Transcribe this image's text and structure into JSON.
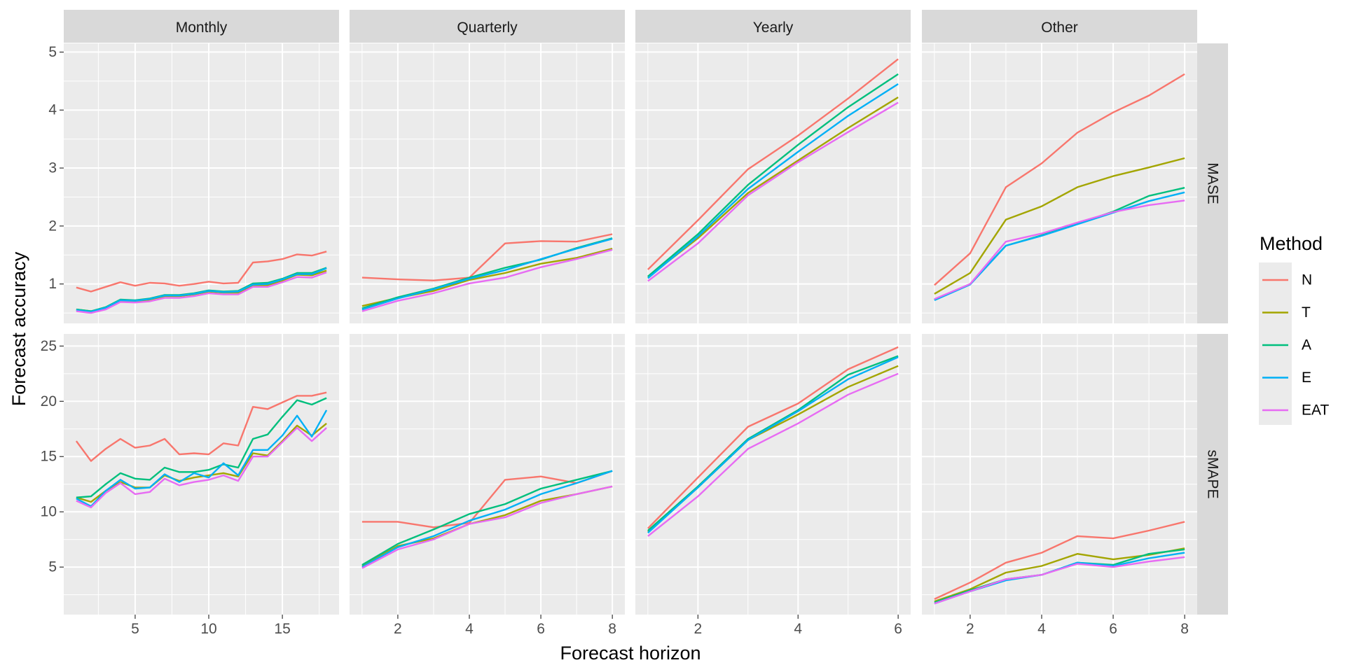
{
  "chart_data": {
    "type": "line",
    "xlabel": "Forecast horizon",
    "ylabel": "Forecast accuracy",
    "legend": {
      "title": "Method",
      "position": "right"
    },
    "grid": true,
    "series_colors": {
      "N": "#F8766D",
      "T": "#A3A500",
      "A": "#00BF7D",
      "E": "#00B0F6",
      "EAT": "#E76BF3"
    },
    "columns": [
      "Monthly",
      "Quarterly",
      "Yearly",
      "Other"
    ],
    "rows": [
      "MASE",
      "sMAPE"
    ],
    "row_axes": {
      "MASE": {
        "ylim": [
          0.32,
          5.15
        ],
        "yticks": [
          1,
          2,
          3,
          4,
          5
        ]
      },
      "sMAPE": {
        "ylim": [
          0.7,
          26.1
        ],
        "yticks": [
          5,
          10,
          15,
          20,
          25
        ]
      }
    },
    "col_axes": {
      "Monthly": {
        "xlim": [
          0.15,
          18.85
        ],
        "xticks": [
          5,
          10,
          15
        ]
      },
      "Quarterly": {
        "xlim": [
          0.65,
          8.35
        ],
        "xticks": [
          2,
          4,
          6,
          8
        ]
      },
      "Yearly": {
        "xlim": [
          0.75,
          6.25
        ],
        "xticks": [
          2,
          4,
          6
        ]
      },
      "Other": {
        "xlim": [
          0.65,
          8.35
        ],
        "xticks": [
          2,
          4,
          6,
          8
        ]
      }
    },
    "panels": [
      {
        "row": "MASE",
        "col": "Monthly",
        "x": [
          1,
          2,
          3,
          4,
          5,
          6,
          7,
          8,
          9,
          10,
          11,
          12,
          13,
          14,
          15,
          16,
          17,
          18
        ],
        "series": [
          {
            "name": "N",
            "values": [
              0.94,
              0.87,
              0.95,
              1.03,
              0.97,
              1.02,
              1.01,
              0.97,
              1.0,
              1.04,
              1.01,
              1.02,
              1.37,
              1.39,
              1.43,
              1.51,
              1.49,
              1.56
            ]
          },
          {
            "name": "T",
            "values": [
              0.56,
              0.53,
              0.58,
              0.71,
              0.7,
              0.73,
              0.79,
              0.79,
              0.82,
              0.87,
              0.85,
              0.85,
              0.98,
              0.98,
              1.06,
              1.16,
              1.15,
              1.23
            ]
          },
          {
            "name": "A",
            "values": [
              0.56,
              0.53,
              0.6,
              0.73,
              0.72,
              0.75,
              0.81,
              0.81,
              0.84,
              0.89,
              0.87,
              0.88,
              1.01,
              1.02,
              1.09,
              1.19,
              1.19,
              1.28
            ]
          },
          {
            "name": "E",
            "values": [
              0.55,
              0.52,
              0.59,
              0.72,
              0.71,
              0.74,
              0.8,
              0.8,
              0.83,
              0.88,
              0.86,
              0.87,
              0.99,
              1.0,
              1.08,
              1.17,
              1.17,
              1.27
            ]
          },
          {
            "name": "EAT",
            "values": [
              0.53,
              0.5,
              0.56,
              0.69,
              0.68,
              0.7,
              0.76,
              0.76,
              0.79,
              0.84,
              0.82,
              0.82,
              0.95,
              0.95,
              1.03,
              1.12,
              1.11,
              1.2
            ]
          }
        ]
      },
      {
        "row": "MASE",
        "col": "Quarterly",
        "x": [
          1,
          2,
          3,
          4,
          5,
          6,
          7,
          8
        ],
        "series": [
          {
            "name": "N",
            "values": [
              1.11,
              1.08,
              1.06,
              1.11,
              1.7,
              1.74,
              1.73,
              1.86
            ]
          },
          {
            "name": "T",
            "values": [
              0.62,
              0.76,
              0.88,
              1.07,
              1.19,
              1.35,
              1.45,
              1.61
            ]
          },
          {
            "name": "A",
            "values": [
              0.58,
              0.77,
              0.92,
              1.11,
              1.28,
              1.42,
              1.62,
              1.79
            ]
          },
          {
            "name": "E",
            "values": [
              0.56,
              0.75,
              0.91,
              1.09,
              1.24,
              1.43,
              1.61,
              1.78
            ]
          },
          {
            "name": "EAT",
            "values": [
              0.53,
              0.71,
              0.84,
              1.01,
              1.11,
              1.29,
              1.43,
              1.59
            ]
          }
        ]
      },
      {
        "row": "MASE",
        "col": "Yearly",
        "x": [
          1,
          2,
          3,
          4,
          5,
          6
        ],
        "series": [
          {
            "name": "N",
            "values": [
              1.25,
              2.1,
              2.98,
              3.56,
              4.2,
              4.88
            ]
          },
          {
            "name": "T",
            "values": [
              1.12,
              1.79,
              2.57,
              3.13,
              3.69,
              4.22
            ]
          },
          {
            "name": "A",
            "values": [
              1.13,
              1.86,
              2.71,
              3.4,
              4.05,
              4.62
            ]
          },
          {
            "name": "E",
            "values": [
              1.1,
              1.82,
              2.64,
              3.28,
              3.9,
              4.45
            ]
          },
          {
            "name": "EAT",
            "values": [
              1.05,
              1.7,
              2.53,
              3.1,
              3.62,
              4.13
            ]
          }
        ]
      },
      {
        "row": "MASE",
        "col": "Other",
        "x": [
          1,
          2,
          3,
          4,
          5,
          6,
          7,
          8
        ],
        "series": [
          {
            "name": "N",
            "values": [
              0.98,
              1.53,
              2.67,
              3.08,
              3.61,
              3.96,
              4.25,
              4.62
            ]
          },
          {
            "name": "T",
            "values": [
              0.83,
              1.19,
              2.11,
              2.34,
              2.67,
              2.86,
              3.01,
              3.17
            ]
          },
          {
            "name": "A",
            "values": [
              0.73,
              1.0,
              1.66,
              1.84,
              2.04,
              2.25,
              2.52,
              2.66
            ]
          },
          {
            "name": "E",
            "values": [
              0.72,
              0.99,
              1.66,
              1.83,
              2.03,
              2.23,
              2.43,
              2.58
            ]
          },
          {
            "name": "EAT",
            "values": [
              0.74,
              1.0,
              1.73,
              1.87,
              2.06,
              2.24,
              2.36,
              2.44
            ]
          }
        ]
      },
      {
        "row": "sMAPE",
        "col": "Monthly",
        "x": [
          1,
          2,
          3,
          4,
          5,
          6,
          7,
          8,
          9,
          10,
          11,
          12,
          13,
          14,
          15,
          16,
          17,
          18
        ],
        "series": [
          {
            "name": "N",
            "values": [
              16.4,
              14.6,
              15.7,
              16.6,
              15.8,
              16.0,
              16.6,
              15.2,
              15.3,
              15.2,
              16.2,
              16.0,
              19.5,
              19.3,
              19.9,
              20.5,
              20.5,
              20.8
            ]
          },
          {
            "name": "T",
            "values": [
              11.3,
              10.9,
              11.9,
              12.7,
              12.2,
              12.2,
              13.3,
              12.8,
              13.1,
              13.3,
              13.5,
              13.2,
              15.3,
              15.1,
              16.4,
              17.8,
              16.9,
              18.0
            ]
          },
          {
            "name": "A",
            "values": [
              11.3,
              11.4,
              12.5,
              13.5,
              13.0,
              12.9,
              14.0,
              13.6,
              13.6,
              13.8,
              14.3,
              14.0,
              16.6,
              17.0,
              18.6,
              20.1,
              19.7,
              20.3
            ]
          },
          {
            "name": "E",
            "values": [
              11.2,
              10.5,
              11.9,
              12.9,
              12.1,
              12.2,
              13.4,
              12.7,
              13.5,
              13.1,
              14.4,
              13.3,
              15.6,
              15.6,
              16.9,
              18.7,
              16.8,
              19.2
            ]
          },
          {
            "name": "EAT",
            "values": [
              11.0,
              10.4,
              11.7,
              12.6,
              11.6,
              11.8,
              13.0,
              12.4,
              12.7,
              12.9,
              13.3,
              12.8,
              15.0,
              15.0,
              16.3,
              17.6,
              16.4,
              17.6
            ]
          }
        ]
      },
      {
        "row": "sMAPE",
        "col": "Quarterly",
        "x": [
          1,
          2,
          3,
          4,
          5,
          6,
          7,
          8
        ],
        "series": [
          {
            "name": "N",
            "values": [
              9.1,
              9.1,
              8.6,
              9.0,
              12.9,
              13.2,
              12.6,
              13.7
            ]
          },
          {
            "name": "T",
            "values": [
              5.1,
              6.9,
              7.6,
              8.9,
              9.7,
              11.0,
              11.6,
              12.3
            ]
          },
          {
            "name": "A",
            "values": [
              5.2,
              7.1,
              8.4,
              9.8,
              10.7,
              12.1,
              12.9,
              13.7
            ]
          },
          {
            "name": "E",
            "values": [
              5.0,
              6.8,
              7.8,
              9.2,
              10.2,
              11.6,
              12.6,
              13.7
            ]
          },
          {
            "name": "EAT",
            "values": [
              4.9,
              6.6,
              7.5,
              8.9,
              9.5,
              10.8,
              11.6,
              12.3
            ]
          }
        ]
      },
      {
        "row": "sMAPE",
        "col": "Yearly",
        "x": [
          1,
          2,
          3,
          4,
          5,
          6
        ],
        "series": [
          {
            "name": "N",
            "values": [
              8.5,
              13.1,
              17.7,
              19.8,
              22.9,
              24.9
            ]
          },
          {
            "name": "T",
            "values": [
              8.2,
              12.2,
              16.5,
              18.8,
              21.3,
              23.2
            ]
          },
          {
            "name": "A",
            "values": [
              8.3,
              12.3,
              16.6,
              19.2,
              22.4,
              24.1
            ]
          },
          {
            "name": "E",
            "values": [
              8.1,
              12.2,
              16.5,
              19.1,
              22.0,
              24.0
            ]
          },
          {
            "name": "EAT",
            "values": [
              7.8,
              11.4,
              15.7,
              18.0,
              20.6,
              22.5
            ]
          }
        ]
      },
      {
        "row": "sMAPE",
        "col": "Other",
        "x": [
          1,
          2,
          3,
          4,
          5,
          6,
          7,
          8
        ],
        "series": [
          {
            "name": "N",
            "values": [
              2.1,
              3.6,
              5.4,
              6.3,
              7.8,
              7.6,
              8.3,
              9.1
            ]
          },
          {
            "name": "T",
            "values": [
              1.9,
              3.0,
              4.5,
              5.1,
              6.2,
              5.7,
              6.1,
              6.7
            ]
          },
          {
            "name": "A",
            "values": [
              1.8,
              2.9,
              3.9,
              4.3,
              5.4,
              5.2,
              6.2,
              6.6
            ]
          },
          {
            "name": "E",
            "values": [
              1.7,
              2.8,
              3.8,
              4.3,
              5.4,
              5.1,
              5.8,
              6.3
            ]
          },
          {
            "name": "EAT",
            "values": [
              1.7,
              2.8,
              3.9,
              4.3,
              5.3,
              5.0,
              5.5,
              5.9
            ]
          }
        ]
      }
    ]
  }
}
